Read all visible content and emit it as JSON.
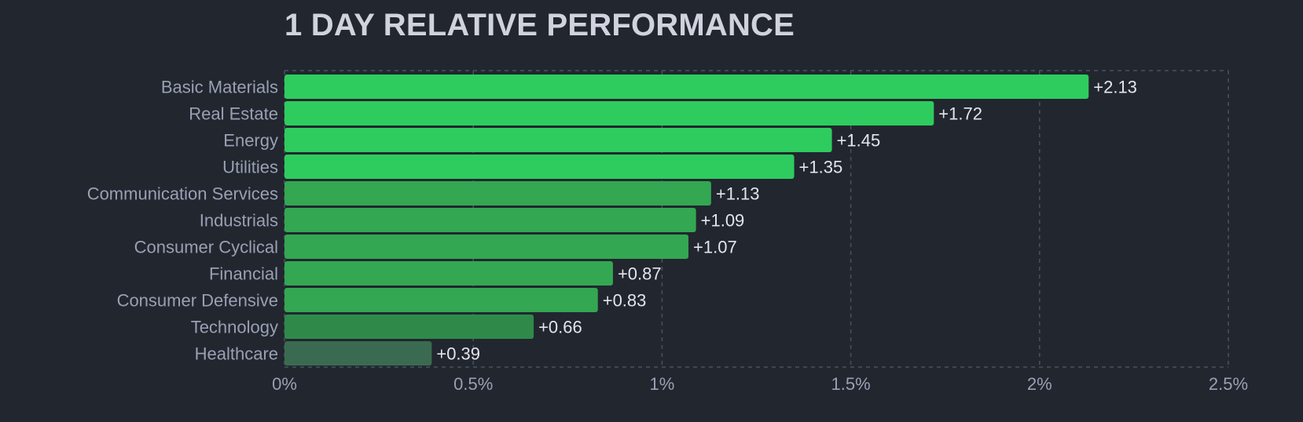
{
  "title": "1 DAY RELATIVE PERFORMANCE",
  "colors": {
    "background": "#22262f",
    "grid": "#4a5062",
    "bar_strong": "#2ecc5e",
    "bar_medium": "#33a752",
    "bar_light": "#2f8a4a",
    "bar_weak": "#3a6b50"
  },
  "chart_data": {
    "type": "bar",
    "orientation": "horizontal",
    "title": "1 DAY RELATIVE PERFORMANCE",
    "categories": [
      "Basic Materials",
      "Real Estate",
      "Energy",
      "Utilities",
      "Communication Services",
      "Industrials",
      "Consumer Cyclical",
      "Financial",
      "Consumer Defensive",
      "Technology",
      "Healthcare"
    ],
    "values": [
      2.13,
      1.72,
      1.45,
      1.35,
      1.13,
      1.09,
      1.07,
      0.87,
      0.83,
      0.66,
      0.39
    ],
    "value_labels": [
      "+2.13",
      "+1.72",
      "+1.45",
      "+1.35",
      "+1.13",
      "+1.09",
      "+1.07",
      "+0.87",
      "+0.83",
      "+0.66",
      "+0.39"
    ],
    "xlim": [
      0,
      2.5
    ],
    "xticks": [
      0,
      0.5,
      1,
      1.5,
      2,
      2.5
    ],
    "xtick_labels": [
      "0%",
      "0.5%",
      "1%",
      "1.5%",
      "2%",
      "2.5%"
    ],
    "grid": true,
    "grid_style": "dashed",
    "legend": false
  }
}
